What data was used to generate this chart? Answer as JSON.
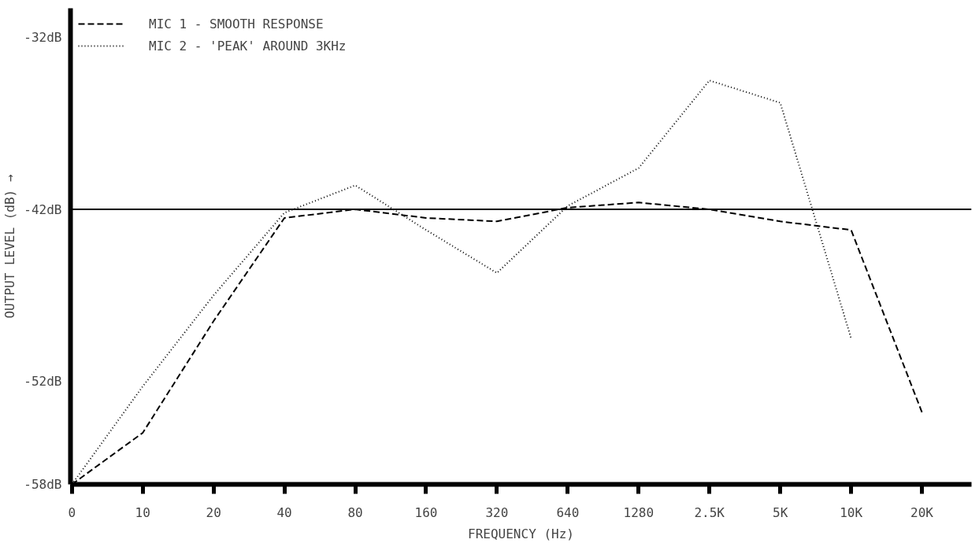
{
  "chart_data": {
    "type": "line",
    "xlabel": "FREQUENCY (Hz)",
    "ylabel": "OUTPUT LEVEL (dB) →",
    "categories": [
      "0",
      "10",
      "20",
      "40",
      "80",
      "160",
      "320",
      "640",
      "1280",
      "2.5K",
      "5K",
      "10K",
      "20K"
    ],
    "ylim": [
      -58,
      -30.3
    ],
    "yticks": [
      {
        "value": -32,
        "label": "-32dB"
      },
      {
        "value": -42,
        "label": "-42dB"
      },
      {
        "value": -52,
        "label": "-52dB"
      },
      {
        "value": -58,
        "label": "-58dB"
      }
    ],
    "grid": false,
    "legend": "top left",
    "ref_lines": [
      {
        "axis": "y",
        "value": -42,
        "label": null,
        "color": "#000000",
        "line_style": "solid"
      }
    ],
    "series": [
      {
        "name": "MIC 1 - SMOOTH RESPONSE",
        "color": "#000000",
        "line_style": "dashed",
        "values": [
          -58,
          -55.0,
          -48.5,
          -42.5,
          -42.0,
          -42.5,
          -42.7,
          -41.9,
          -41.6,
          -42.0,
          -42.7,
          -43.2,
          -53.8
        ]
      },
      {
        "name": "MIC 2 - 'PEAK' AROUND 3KHz",
        "color": "#000000",
        "line_style": "dotted",
        "values": [
          -58,
          -52.3,
          -47.0,
          -42.2,
          -40.6,
          -43.2,
          -45.7,
          -41.8,
          -39.6,
          -34.5,
          -35.8,
          -49.5,
          null
        ]
      }
    ]
  }
}
